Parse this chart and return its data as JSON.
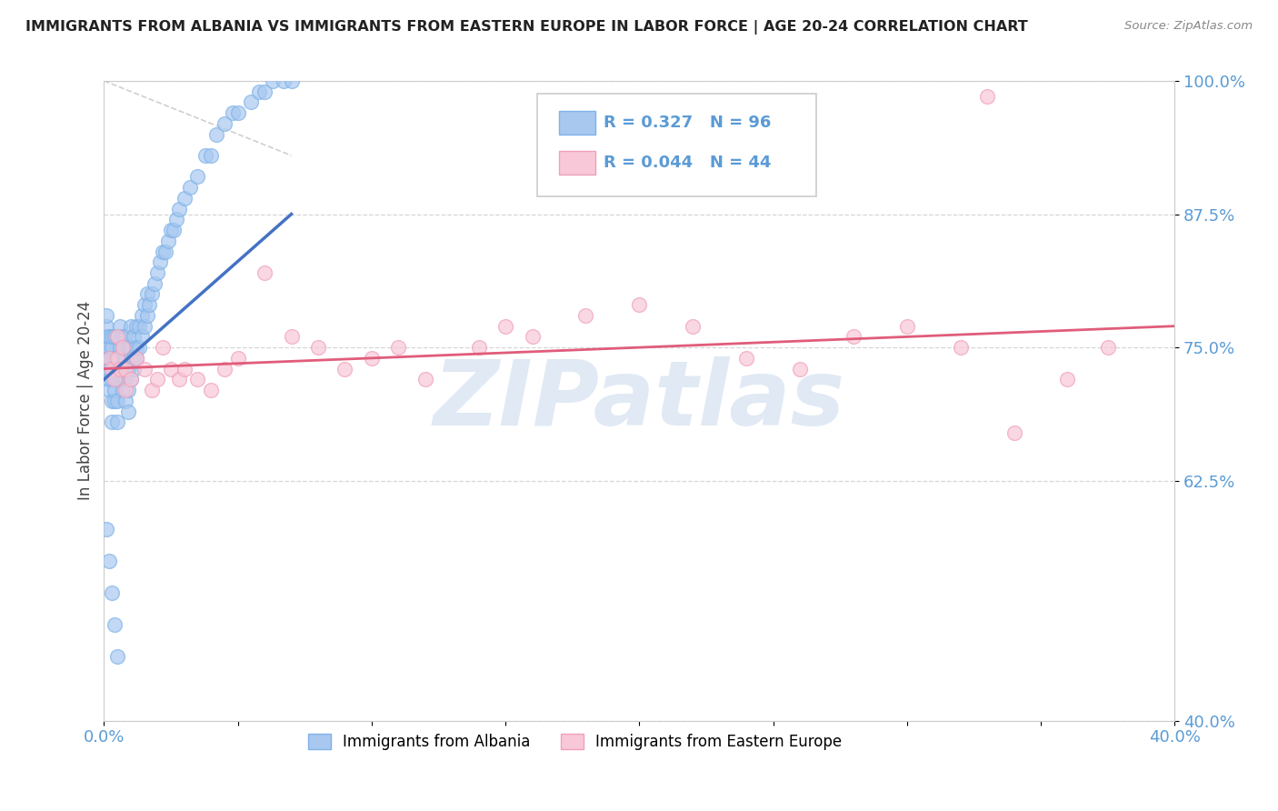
{
  "title": "IMMIGRANTS FROM ALBANIA VS IMMIGRANTS FROM EASTERN EUROPE IN LABOR FORCE | AGE 20-24 CORRELATION CHART",
  "source_text": "Source: ZipAtlas.com",
  "ylabel": "In Labor Force | Age 20-24",
  "legend_bottom": [
    "Immigrants from Albania",
    "Immigrants from Eastern Europe"
  ],
  "blue_R": 0.327,
  "blue_N": 96,
  "pink_R": 0.044,
  "pink_N": 44,
  "xlim": [
    0.0,
    0.4
  ],
  "ylim": [
    0.4,
    1.0
  ],
  "ytick_vals": [
    0.4,
    0.625,
    0.75,
    0.875,
    1.0
  ],
  "ytick_labels": [
    "40.0%",
    "62.5%",
    "75.0%",
    "87.5%",
    "100.0%"
  ],
  "xtick_vals": [
    0.0,
    0.05,
    0.1,
    0.15,
    0.2,
    0.25,
    0.3,
    0.35,
    0.4
  ],
  "xtick_labels": [
    "0.0%",
    "",
    "",
    "",
    "",
    "",
    "",
    "",
    "40.0%"
  ],
  "blue_color": "#A8C8F0",
  "blue_edge_color": "#7EB3E8",
  "blue_line_color": "#4472C4",
  "pink_color": "#F8C8D8",
  "pink_edge_color": "#F0A0B8",
  "pink_line_color": "#E05C7A",
  "watermark_color": "#C8D8EC",
  "watermark_text": "ZIPatlas",
  "background_color": "#FFFFFF",
  "grid_color": "#CCCCCC",
  "blue_scatter_x": [
    0.001,
    0.001,
    0.001,
    0.001,
    0.001,
    0.002,
    0.002,
    0.002,
    0.002,
    0.002,
    0.002,
    0.003,
    0.003,
    0.003,
    0.003,
    0.003,
    0.003,
    0.004,
    0.004,
    0.004,
    0.004,
    0.004,
    0.005,
    0.005,
    0.005,
    0.005,
    0.005,
    0.005,
    0.006,
    0.006,
    0.006,
    0.006,
    0.006,
    0.007,
    0.007,
    0.007,
    0.007,
    0.007,
    0.008,
    0.008,
    0.008,
    0.008,
    0.009,
    0.009,
    0.009,
    0.009,
    0.01,
    0.01,
    0.01,
    0.01,
    0.011,
    0.011,
    0.011,
    0.012,
    0.012,
    0.012,
    0.013,
    0.013,
    0.014,
    0.014,
    0.015,
    0.015,
    0.016,
    0.016,
    0.017,
    0.018,
    0.019,
    0.02,
    0.021,
    0.022,
    0.023,
    0.024,
    0.025,
    0.026,
    0.027,
    0.028,
    0.03,
    0.032,
    0.035,
    0.038,
    0.04,
    0.042,
    0.045,
    0.048,
    0.05,
    0.055,
    0.058,
    0.06,
    0.063,
    0.067,
    0.07,
    0.001,
    0.002,
    0.003,
    0.004,
    0.005
  ],
  "blue_scatter_y": [
    0.73,
    0.75,
    0.76,
    0.77,
    0.78,
    0.71,
    0.72,
    0.73,
    0.74,
    0.75,
    0.76,
    0.68,
    0.7,
    0.72,
    0.74,
    0.75,
    0.76,
    0.7,
    0.71,
    0.73,
    0.74,
    0.76,
    0.68,
    0.7,
    0.72,
    0.73,
    0.74,
    0.76,
    0.72,
    0.73,
    0.74,
    0.75,
    0.77,
    0.71,
    0.72,
    0.73,
    0.75,
    0.76,
    0.7,
    0.72,
    0.74,
    0.76,
    0.69,
    0.71,
    0.73,
    0.75,
    0.72,
    0.74,
    0.75,
    0.77,
    0.73,
    0.74,
    0.76,
    0.74,
    0.75,
    0.77,
    0.75,
    0.77,
    0.76,
    0.78,
    0.77,
    0.79,
    0.78,
    0.8,
    0.79,
    0.8,
    0.81,
    0.82,
    0.83,
    0.84,
    0.84,
    0.85,
    0.86,
    0.86,
    0.87,
    0.88,
    0.89,
    0.9,
    0.91,
    0.93,
    0.93,
    0.95,
    0.96,
    0.97,
    0.97,
    0.98,
    0.99,
    0.99,
    1.0,
    1.0,
    1.0,
    0.58,
    0.55,
    0.52,
    0.49,
    0.46
  ],
  "pink_scatter_x": [
    0.002,
    0.003,
    0.004,
    0.005,
    0.005,
    0.006,
    0.007,
    0.008,
    0.008,
    0.01,
    0.012,
    0.015,
    0.018,
    0.02,
    0.022,
    0.025,
    0.028,
    0.03,
    0.035,
    0.04,
    0.045,
    0.05,
    0.06,
    0.07,
    0.08,
    0.09,
    0.1,
    0.11,
    0.12,
    0.14,
    0.15,
    0.16,
    0.18,
    0.2,
    0.22,
    0.24,
    0.26,
    0.28,
    0.3,
    0.32,
    0.34,
    0.36,
    0.375,
    0.33
  ],
  "pink_scatter_y": [
    0.74,
    0.73,
    0.72,
    0.74,
    0.76,
    0.73,
    0.75,
    0.71,
    0.73,
    0.72,
    0.74,
    0.73,
    0.71,
    0.72,
    0.75,
    0.73,
    0.72,
    0.73,
    0.72,
    0.71,
    0.73,
    0.74,
    0.82,
    0.76,
    0.75,
    0.73,
    0.74,
    0.75,
    0.72,
    0.75,
    0.77,
    0.76,
    0.78,
    0.79,
    0.77,
    0.74,
    0.73,
    0.76,
    0.77,
    0.75,
    0.67,
    0.72,
    0.75,
    0.985
  ],
  "ref_line_x": [
    0.0,
    0.07
  ],
  "ref_line_y": [
    1.0,
    0.93
  ],
  "blue_line_x": [
    0.0,
    0.07
  ],
  "blue_line_y": [
    0.72,
    0.875
  ],
  "pink_line_x": [
    0.0,
    0.4
  ],
  "pink_line_y": [
    0.73,
    0.77
  ]
}
